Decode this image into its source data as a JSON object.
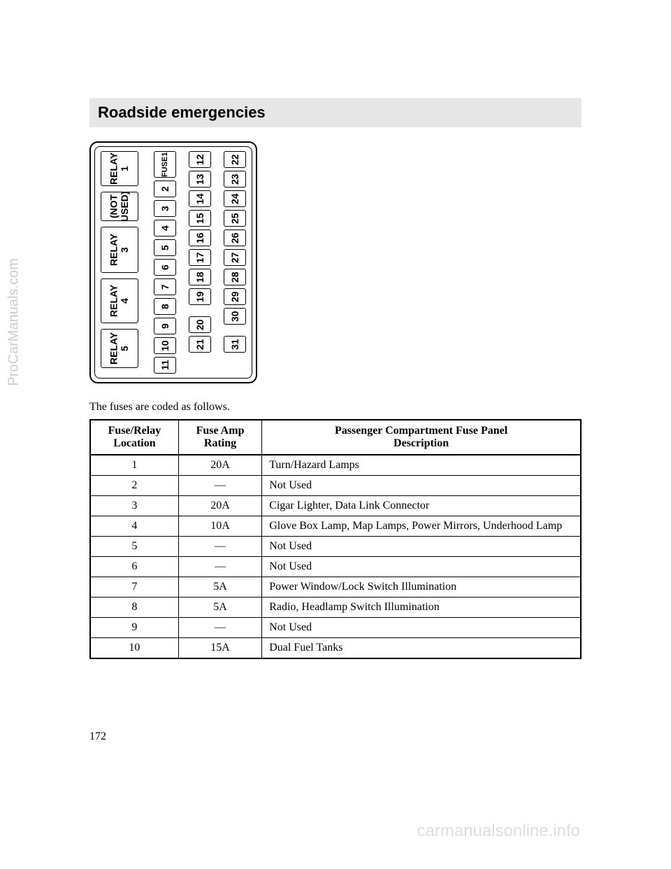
{
  "watermarks": {
    "left": "ProCarManuals.com",
    "bottom": "carmanualsonline.info"
  },
  "section_title": "Roadside emergencies",
  "diagram": {
    "relays": [
      {
        "label": "RELAY\n1",
        "hclass": "relay-h1"
      },
      {
        "label": "(NOT\nUSED)",
        "hclass": "relay-h2"
      },
      {
        "label": "RELAY\n3",
        "hclass": "relay-h3"
      },
      {
        "label": "RELAY\n4",
        "hclass": "relay-h4"
      },
      {
        "label": "RELAY\n5",
        "hclass": "relay-h5"
      }
    ],
    "col1": [
      "FUSE1",
      "2",
      "3",
      "4",
      "5",
      "6",
      "7",
      "8",
      "9",
      "10",
      "11"
    ],
    "col2": [
      "12",
      "13",
      "14",
      "15",
      "16",
      "17",
      "18",
      "19",
      "",
      "20",
      "21"
    ],
    "col3": [
      "22",
      "23",
      "24",
      "25",
      "26",
      "27",
      "28",
      "29",
      "30",
      "",
      "31"
    ]
  },
  "intro": "The fuses are coded as follows.",
  "table": {
    "headers": [
      "Fuse/Relay\nLocation",
      "Fuse Amp\nRating",
      "Passenger Compartment Fuse Panel\nDescription"
    ],
    "rows": [
      [
        "1",
        "20A",
        "Turn/Hazard Lamps"
      ],
      [
        "2",
        "—",
        "Not Used"
      ],
      [
        "3",
        "20A",
        "Cigar Lighter, Data Link Connector"
      ],
      [
        "4",
        "10A",
        "Glove Box Lamp, Map Lamps, Power Mirrors, Underhood Lamp"
      ],
      [
        "5",
        "—",
        "Not Used"
      ],
      [
        "6",
        "—",
        "Not Used"
      ],
      [
        "7",
        "5A",
        "Power Window/Lock Switch Illumination"
      ],
      [
        "8",
        "5A",
        "Radio, Headlamp Switch Illumination"
      ],
      [
        "9",
        "—",
        "Not Used"
      ],
      [
        "10",
        "15A",
        "Dual Fuel Tanks"
      ]
    ]
  },
  "page_number": "172"
}
